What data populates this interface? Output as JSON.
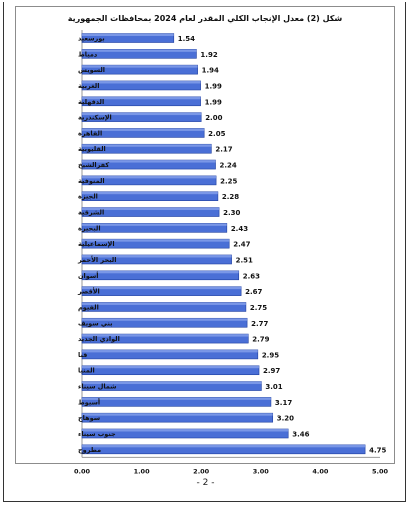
{
  "page_number": "- 2 -",
  "chart_data": {
    "type": "bar",
    "orientation": "horizontal",
    "title": "شكل (2) معدل الإنجاب الكلي المقدر لعام 2024 بمحافظات الجمهورية",
    "categories": [
      "بورسعيد",
      "دمياط",
      "السويس",
      "الغربية",
      "الدقهلية",
      "الإسكندرية",
      "القاهرة",
      "القليوبية",
      "كفرالشيخ",
      "المنوفية",
      "الجيزة",
      "الشرقية",
      "البحيرة",
      "الإسماعيلية",
      "البحر الأحمر",
      "أسوان",
      "الأقصر",
      "الفيوم",
      "بني سويف",
      "الوادي الجديد",
      "قنا",
      "المنيا",
      "شمال سيناء",
      "أسيوط",
      "سوهاج",
      "جنوب سيناء",
      "مطروح"
    ],
    "values": [
      1.54,
      1.92,
      1.94,
      1.99,
      1.99,
      2.0,
      2.05,
      2.17,
      2.24,
      2.25,
      2.28,
      2.3,
      2.43,
      2.47,
      2.51,
      2.63,
      2.67,
      2.75,
      2.77,
      2.79,
      2.95,
      2.97,
      3.01,
      3.17,
      3.2,
      3.46,
      4.75
    ],
    "data_labels": [
      "1.54",
      "1.92",
      "1.94",
      "1.99",
      "1.99",
      "2.00",
      "2.05",
      "2.17",
      "2.24",
      "2.25",
      "2.28",
      "2.30",
      "2.43",
      "2.47",
      "2.51",
      "2.63",
      "2.67",
      "2.75",
      "2.77",
      "2.79",
      "2.95",
      "2.97",
      "3.01",
      "3.17",
      "3.20",
      "3.46",
      "4.75"
    ],
    "xlim": [
      0,
      5
    ],
    "x_ticks": [
      "0.00",
      "1.00",
      "2.00",
      "3.00",
      "4.00",
      "5.00"
    ],
    "grid": false,
    "bar_color": "#4a6fd6",
    "bar_edge_color": "#1f3f9e"
  }
}
